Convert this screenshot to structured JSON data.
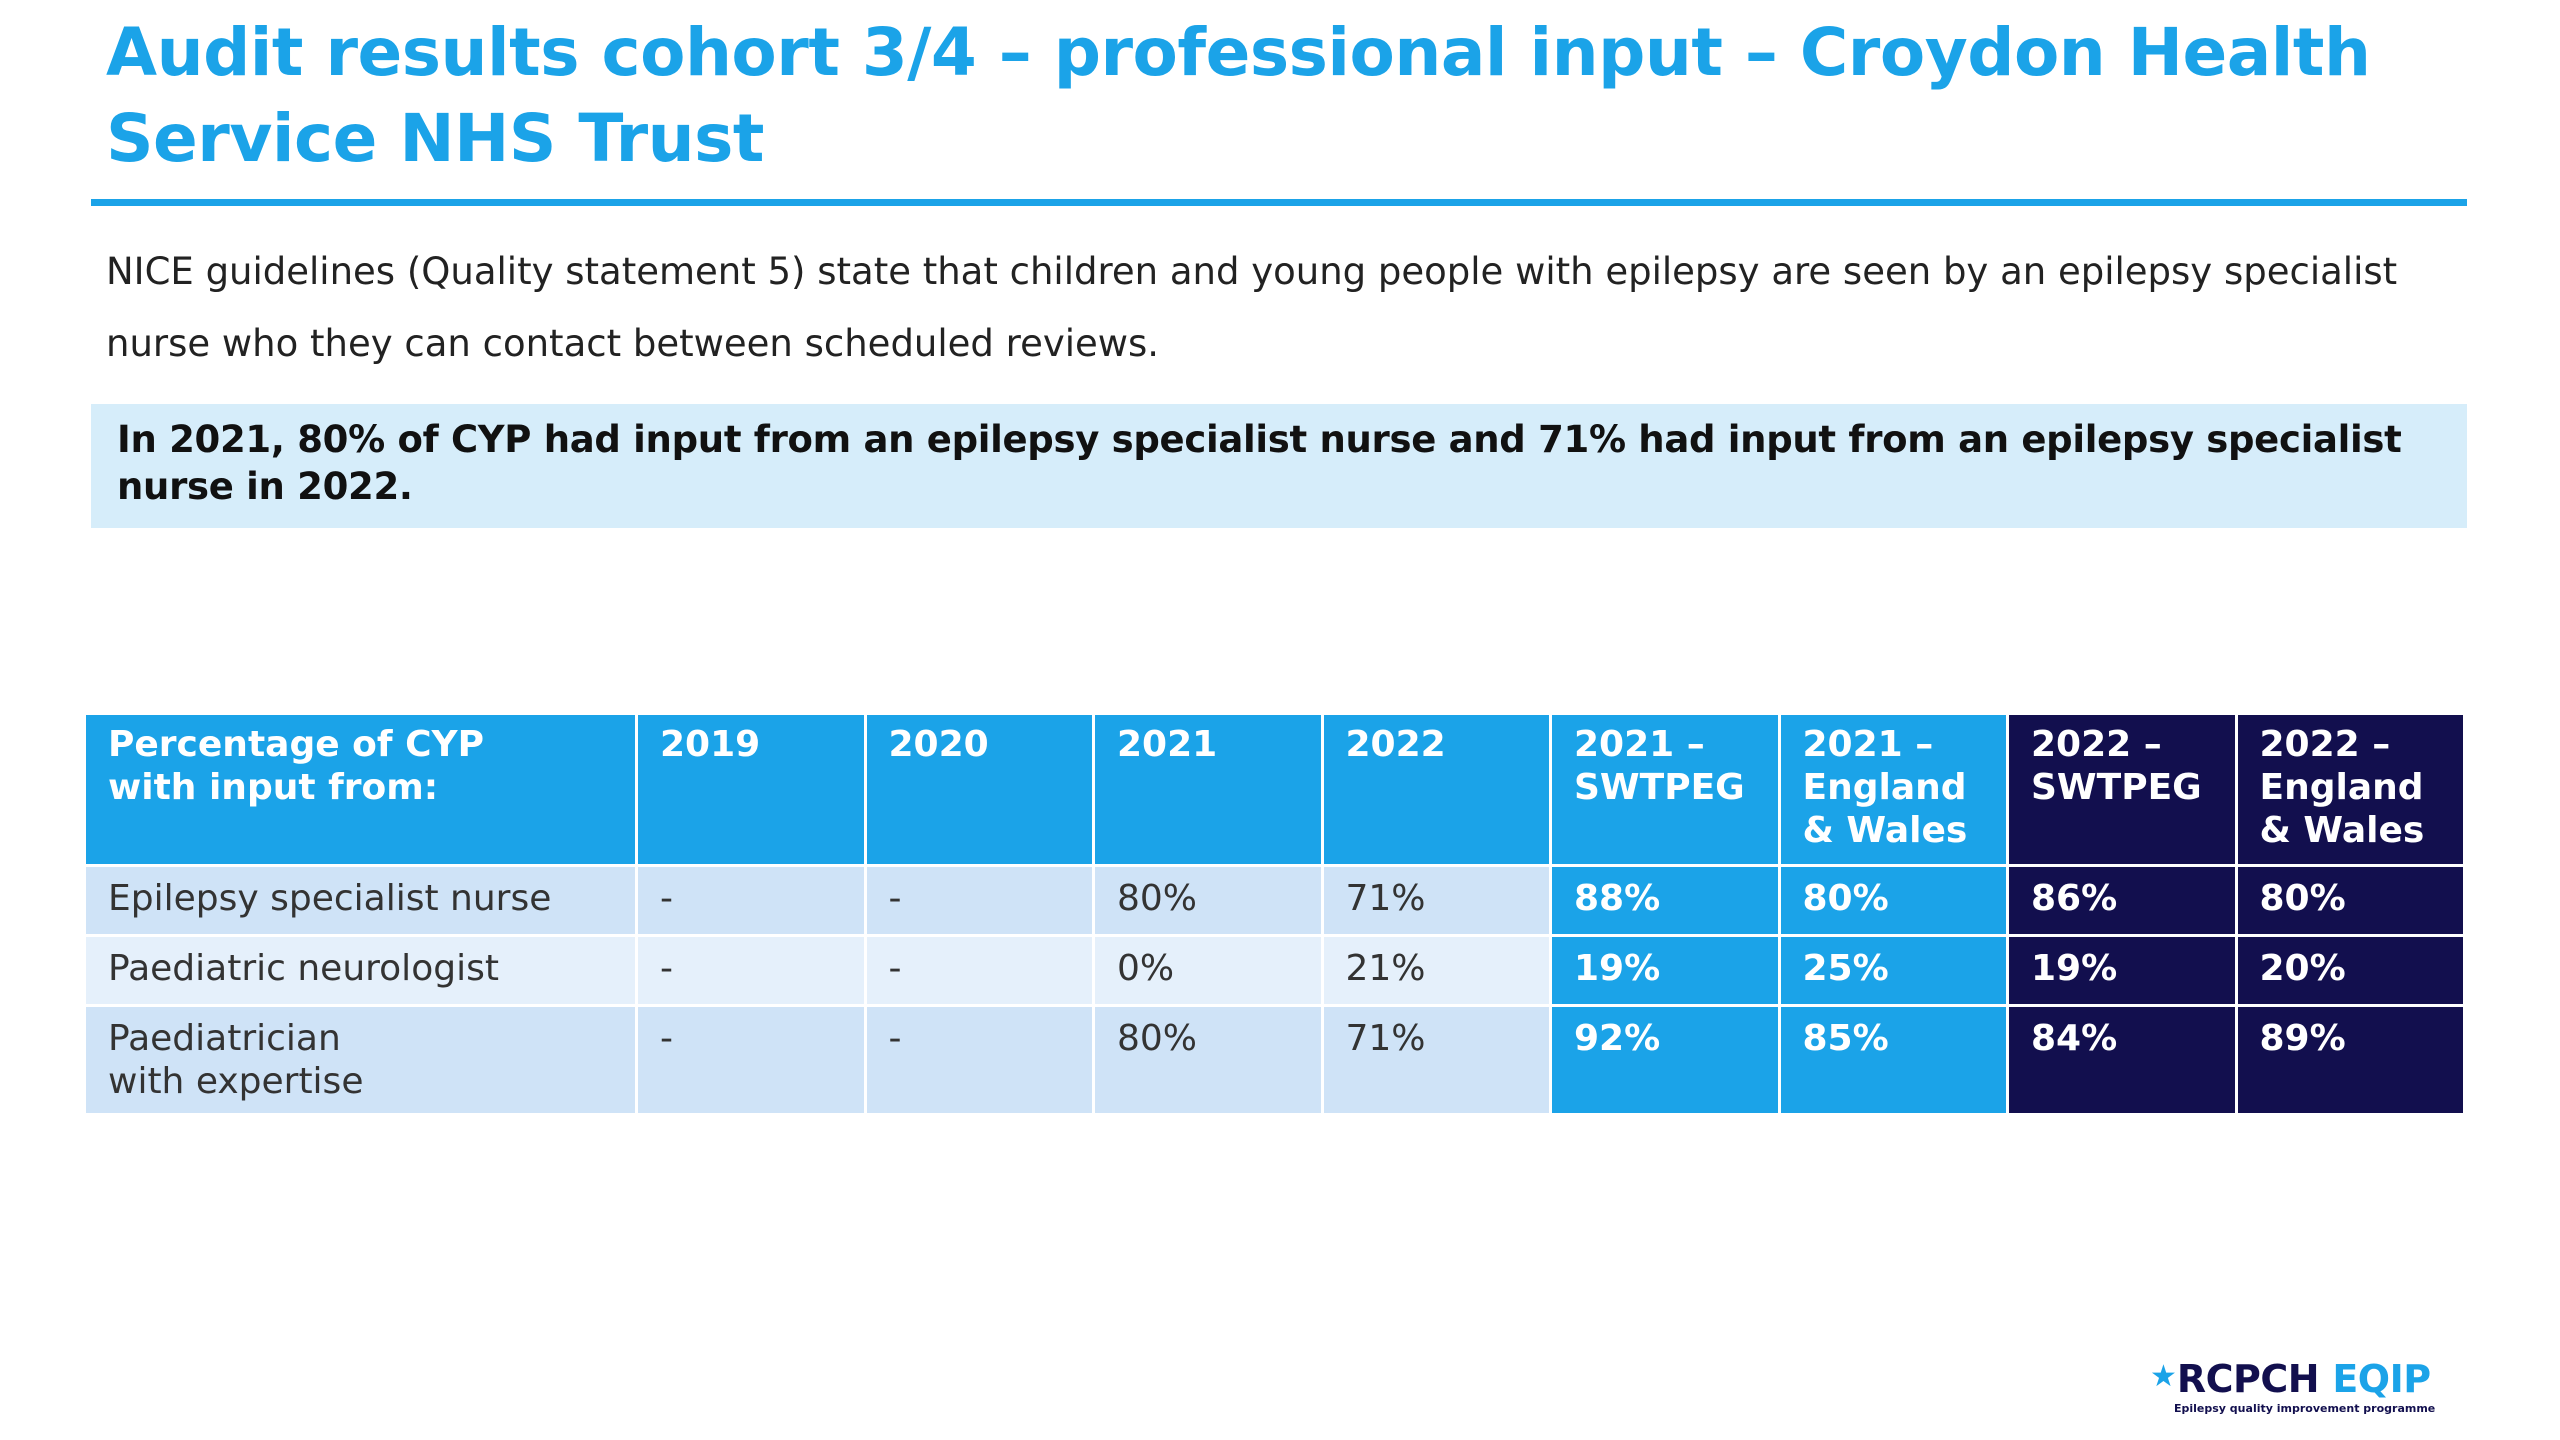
{
  "title": "Audit results cohort 3/4 – professional input – Croydon Health Service NHS Trust",
  "intro": "NICE guidelines (Quality statement 5) state that children and young people with epilepsy are seen by an epilepsy specialist nurse who they can contact between scheduled reviews.",
  "callout": "In 2021, 80% of CYP had input from an epilepsy specialist nurse and 71% had input from an epilepsy specialist nurse in 2022.",
  "table": {
    "headers": [
      "Percentage of CYP\nwith input from:",
      "2019",
      "2020",
      "2021",
      "2022",
      "2021 –\nSWTPEG",
      "2021 –\nEngland\n& Wales",
      "2022 –\nSWTPEG",
      "2022 –\nEngland\n& Wales"
    ],
    "rows": [
      [
        "Epilepsy specialist nurse",
        "-",
        "-",
        "80%",
        "71%",
        "88%",
        "80%",
        "86%",
        "80%"
      ],
      [
        "Paediatric neurologist",
        "-",
        "-",
        "0%",
        "21%",
        "19%",
        "25%",
        "19%",
        "20%"
      ],
      [
        "Paediatrician\nwith expertise",
        "-",
        "-",
        "80%",
        "71%",
        "92%",
        "85%",
        "84%",
        "89%"
      ]
    ]
  },
  "logo": {
    "star": "★",
    "rcpch": "RCPCH",
    "eqip": "EQIP",
    "tagline": "Epilepsy quality improvement programme"
  },
  "colors": {
    "accent_blue": "#1ba3e8",
    "navy": "#120f4e",
    "callout_bg": "#d6edfa",
    "row_light": "#cfe3f7",
    "row_lighter": "#e5f0fb"
  }
}
